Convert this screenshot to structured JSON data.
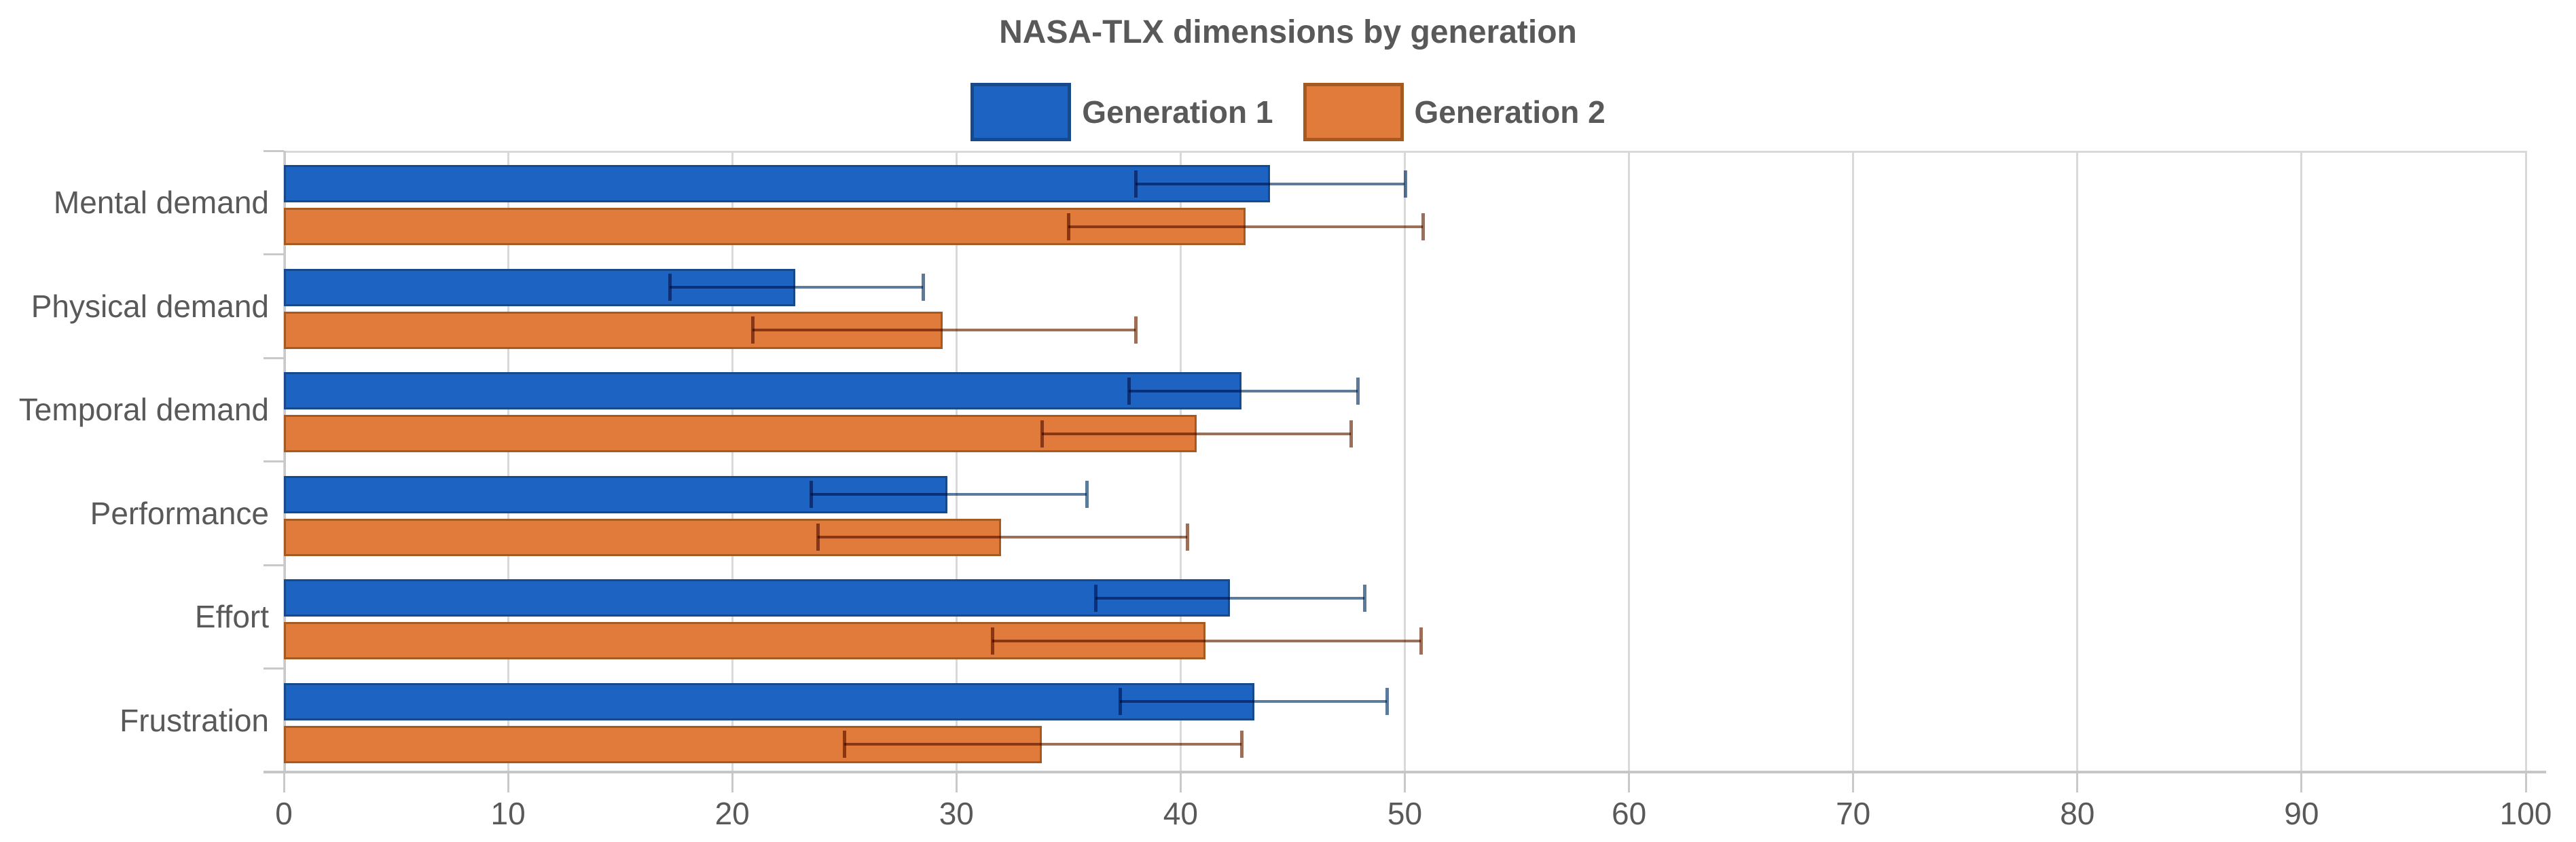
{
  "chart": {
    "title": "NASA-TLX dimensions by generation"
  },
  "chart_data": {
    "type": "bar",
    "orientation": "horizontal",
    "title": "NASA-TLX dimensions by generation",
    "categories": [
      "Mental demand",
      "Physical demand",
      "Temporal demand",
      "Performance",
      "Effort",
      "Frustration"
    ],
    "series": [
      {
        "name": "Generation 1",
        "color": "#1d63c1",
        "border_color": "#164a8c",
        "error_color": "#5b7b9d",
        "values": [
          44.0,
          22.8,
          42.7,
          29.6,
          42.2,
          43.3
        ],
        "error_low": [
          38.0,
          17.2,
          37.7,
          23.5,
          36.2,
          37.3
        ],
        "error_high": [
          50.0,
          28.5,
          47.9,
          35.8,
          48.2,
          49.2
        ]
      },
      {
        "name": "Generation 2",
        "color": "#e07b3b",
        "border_color": "#a45a20",
        "error_color": "#9c6f56",
        "values": [
          42.9,
          29.4,
          40.7,
          32.0,
          41.1,
          33.8
        ],
        "error_low": [
          35.0,
          20.9,
          33.8,
          23.8,
          31.6,
          25.0
        ],
        "error_high": [
          50.8,
          38.0,
          47.6,
          40.3,
          50.7,
          42.7
        ]
      }
    ],
    "xlabel": "",
    "ylabel": "",
    "x_ticks": [
      0,
      10,
      20,
      30,
      40,
      50,
      60,
      70,
      80,
      90,
      100
    ],
    "xlim": [
      0,
      100
    ],
    "grid": "vertical",
    "legend_position": "top",
    "colors": {
      "grid": "#d9d9d9",
      "axis": "#c6c6c6",
      "stub": "#c9c9c9",
      "text": "#595959",
      "background": "#ffffff"
    }
  }
}
